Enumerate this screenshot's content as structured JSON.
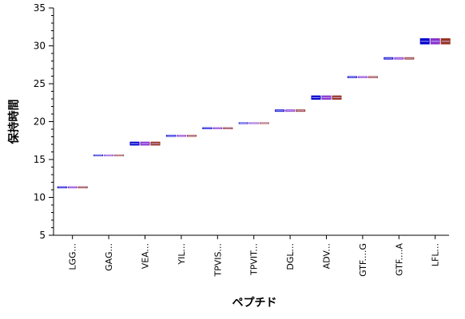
{
  "chart_data": {
    "type": "bar",
    "title": "",
    "xlabel": "ペプチド",
    "ylabel": "保持時間",
    "ylim": [
      5,
      35
    ],
    "yticks": [
      5,
      10,
      15,
      20,
      25,
      30,
      35
    ],
    "grid": false,
    "categories": [
      "LGG...",
      "GAG...",
      "VEA...",
      "YIL...",
      "TPVIS...",
      "TPVIT...",
      "DGL...",
      "ADV...",
      "GTF....G",
      "GTF....A",
      "LFL..."
    ],
    "series": [
      {
        "values": [
          [
            11.2,
            11.45
          ],
          [
            15.45,
            15.65
          ],
          [
            16.85,
            17.35
          ],
          [
            18.0,
            18.25
          ],
          [
            19.0,
            19.25
          ],
          [
            19.7,
            19.9
          ],
          [
            21.3,
            21.6
          ],
          [
            22.9,
            23.45
          ],
          [
            25.75,
            26.0
          ],
          [
            28.2,
            28.5
          ],
          [
            30.2,
            31.0
          ]
        ]
      },
      {
        "values": [
          [
            11.2,
            11.45
          ],
          [
            15.45,
            15.65
          ],
          [
            16.85,
            17.35
          ],
          [
            18.0,
            18.25
          ],
          [
            19.0,
            19.25
          ],
          [
            19.7,
            19.9
          ],
          [
            21.3,
            21.6
          ],
          [
            22.9,
            23.45
          ],
          [
            25.75,
            26.0
          ],
          [
            28.2,
            28.5
          ],
          [
            30.2,
            31.0
          ]
        ]
      },
      {
        "values": [
          [
            11.2,
            11.45
          ],
          [
            15.45,
            15.65
          ],
          [
            16.85,
            17.35
          ],
          [
            18.0,
            18.25
          ],
          [
            19.0,
            19.25
          ],
          [
            19.7,
            19.9
          ],
          [
            21.3,
            21.6
          ],
          [
            22.9,
            23.45
          ],
          [
            25.75,
            26.0
          ],
          [
            28.2,
            28.5
          ],
          [
            30.2,
            31.0
          ]
        ]
      }
    ],
    "colors": [
      "#0000cc",
      "#8833cc",
      "#993322"
    ]
  }
}
